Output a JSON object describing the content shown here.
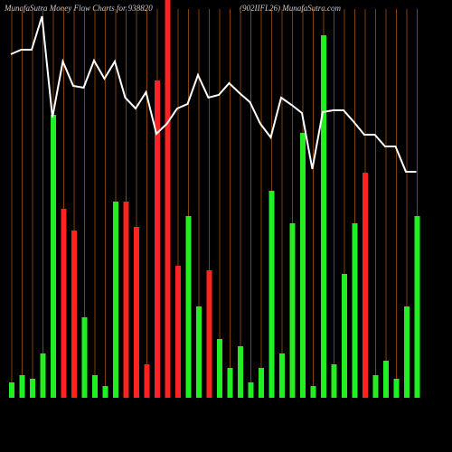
{
  "chart_data": {
    "type": "bar",
    "title": "MunafaSutra  Money Flow  Charts for 938820",
    "subtitle": "(902IIFL26) MunafaSutra.com",
    "categories": [
      null,
      null,
      null,
      null,
      null,
      null,
      null,
      null,
      null,
      null,
      null,
      null,
      null,
      null,
      null,
      null,
      null,
      null,
      null,
      null,
      null,
      null,
      null,
      null,
      null,
      null,
      null,
      null,
      null,
      null,
      null,
      null,
      null,
      null,
      null,
      null,
      null,
      null,
      null,
      null
    ],
    "ylim": [
      0,
      440
    ],
    "grid_color": "#a0520d",
    "series": [
      {
        "type": "bar",
        "values": [
          17,
          25,
          21,
          49,
          313,
          209,
          185,
          89,
          25,
          13,
          217,
          217,
          189,
          37,
          351,
          440,
          146,
          201,
          101,
          141,
          65,
          33,
          57,
          17,
          33,
          229,
          49,
          193,
          293,
          13,
          401,
          37,
          137,
          193,
          249,
          25,
          41,
          21,
          101,
          201
        ],
        "colors": [
          "#22ee22",
          "#22ee22",
          "#22ee22",
          "#22ee22",
          "#22ee22",
          "#ff2222",
          "#ff2222",
          "#22ee22",
          "#22ee22",
          "#22ee22",
          "#22ee22",
          "#ff2222",
          "#ff2222",
          "#ff2222",
          "#ff2222",
          "#ff2222",
          "#ff2222",
          "#22ee22",
          "#22ee22",
          "#ff2222",
          "#22ee22",
          "#22ee22",
          "#22ee22",
          "#22ee22",
          "#22ee22",
          "#22ee22",
          "#22ee22",
          "#22ee22",
          "#22ee22",
          "#22ee22",
          "#22ee22",
          "#22ee22",
          "#22ee22",
          "#22ee22",
          "#ff2222",
          "#22ee22",
          "#22ee22",
          "#22ee22",
          "#22ee22",
          "#22ee22"
        ]
      },
      {
        "type": "line",
        "color": "#ffffff",
        "values": [
          380,
          385,
          385,
          422,
          310,
          372,
          345,
          343,
          373,
          353,
          372,
          332,
          320,
          338,
          292,
          303,
          320,
          325,
          357,
          332,
          335,
          348,
          337,
          327,
          303,
          288,
          332,
          324,
          315,
          253,
          316,
          318,
          318,
          305,
          291,
          291,
          278,
          278,
          250,
          250
        ]
      }
    ]
  }
}
